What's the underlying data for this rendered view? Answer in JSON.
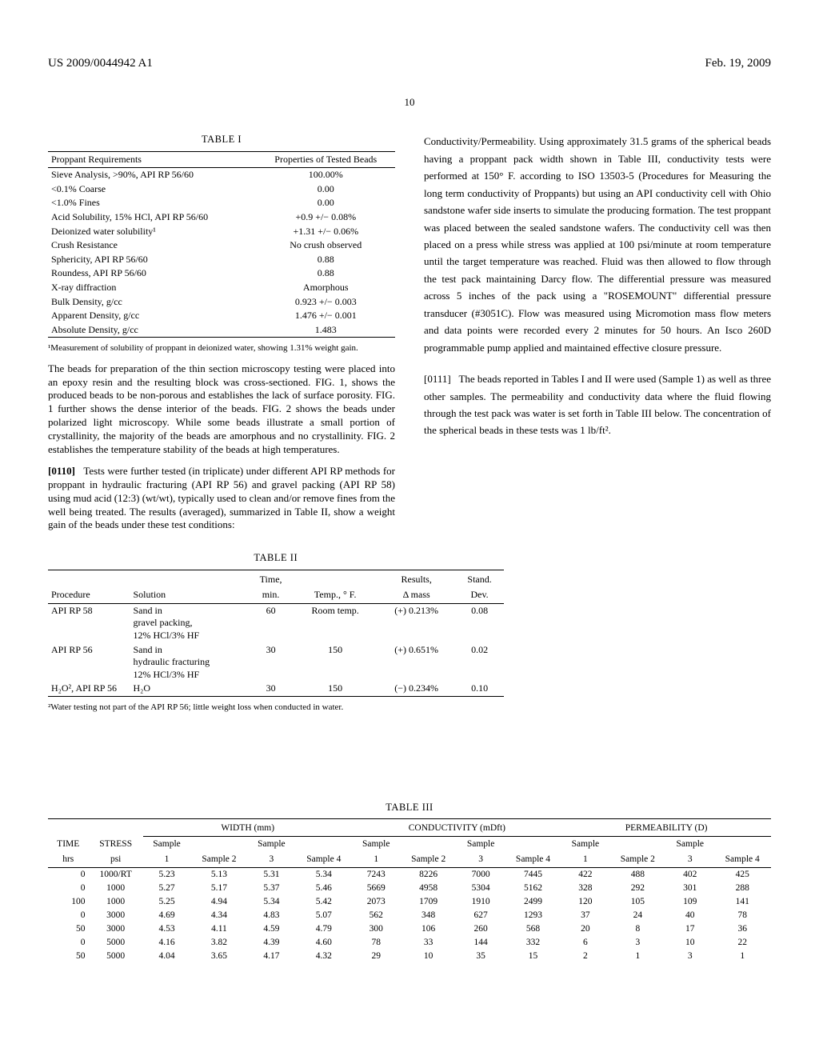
{
  "header": {
    "doc_id": "US 2009/0044942 A1",
    "date": "Feb. 19, 2009",
    "page_number": "10"
  },
  "table1": {
    "title": "TABLE I",
    "col1_header": "Proppant Requirements",
    "col2_header": "Properties of Tested Beads",
    "rows": [
      {
        "req": "Sieve Analysis, >90%, API RP 56/60",
        "val": "100.00%"
      },
      {
        "req": "<0.1% Coarse",
        "val": "0.00"
      },
      {
        "req": "<1.0% Fines",
        "val": "0.00"
      },
      {
        "req": "Acid Solubility, 15% HCl, API RP 56/60",
        "val": "+0.9 +/− 0.08%"
      },
      {
        "req": "Deionized water solubility¹",
        "val": "+1.31 +/− 0.06%"
      },
      {
        "req": "Crush Resistance",
        "val": "No crush observed"
      },
      {
        "req": "Sphericity, API RP 56/60",
        "val": "0.88"
      },
      {
        "req": "Roundess, API RP 56/60",
        "val": "0.88"
      },
      {
        "req": "X-ray diffraction",
        "val": "Amorphous"
      },
      {
        "req": "Bulk Density, g/cc",
        "val": "0.923 +/− 0.003"
      },
      {
        "req": "Apparent Density, g/cc",
        "val": "1.476 +/− 0.001"
      },
      {
        "req": "Absolute Density, g/cc",
        "val": "1.483"
      }
    ],
    "footnote": "¹Measurement of solubility of proppant in deionized water, showing 1.31% weight gain."
  },
  "left_paras": {
    "p1": "The beads for preparation of the thin section microscopy testing were placed into an epoxy resin and the resulting block was cross-sectioned. FIG. 1, shows the produced beads to be non-porous and establishes the lack of surface porosity. FIG. 1 further shows the dense interior of the beads. FIG. 2 shows the beads under polarized light microscopy. While some beads illustrate a small portion of crystallinity, the majority of the beads are amorphous and no crystallinity. FIG. 2 establishes the temperature stability of the beads at high temperatures.",
    "p2_label": "[0110]",
    "p2": "Tests were further tested (in triplicate) under different API RP methods for proppant in hydraulic fracturing (API RP 56) and gravel packing (API RP 58) using mud acid (12:3) (wt/wt), typically used to clean and/or remove fines from the well being treated. The results (averaged), summarized in Table II, show a weight gain of the beads under these test conditions:"
  },
  "right_paras": {
    "p1": "Conductivity/Permeability. Using approximately 31.5 grams of the spherical beads having a proppant pack width shown in Table III, conductivity tests were performed at 150° F. according to ISO 13503-5 (Procedures for Measuring the long term conductivity of Proppants) but using an API conductivity cell with Ohio sandstone wafer side inserts to simulate the producing formation. The test proppant was placed between the sealed sandstone wafers. The conductivity cell was then placed on a press while stress was applied at 100 psi/minute at room temperature until the target temperature was reached. Fluid was then allowed to flow through the test pack maintaining Darcy flow. The differential pressure was measured across 5 inches of the pack using a \"ROSEMOUNT\" differential pressure transducer (#3051C). Flow was measured using Micromotion mass flow meters and data points were recorded every 2 minutes for 50 hours. An Isco 260D programmable pump applied and maintained effective closure pressure.",
    "p2_label": "[0111]",
    "p2": "The beads reported in Tables I and II were used (Sample 1) as well as three other samples. The permeability and conductivity data where the fluid flowing through the test pack was water is set forth in Table III below. The concentration of the spherical beads in these tests was 1 lb/ft²."
  },
  "table2": {
    "title": "TABLE II",
    "headers": {
      "h1": "Procedure",
      "h2": "Solution",
      "h3a": "Time,",
      "h3b": "min.",
      "h4": "Temp., ° F.",
      "h5a": "Results,",
      "h5b": "Δ mass",
      "h6a": "Stand.",
      "h6b": "Dev."
    },
    "rows": [
      {
        "proc": "API RP 58",
        "sol": "Sand in\ngravel packing,\n12% HCl/3% HF",
        "time": "60",
        "temp": "Room temp.",
        "res": "(+) 0.213%",
        "sd": "0.08"
      },
      {
        "proc": "API RP 56",
        "sol": "Sand in\nhydraulic fracturing\n12% HCl/3% HF",
        "time": "30",
        "temp": "150",
        "res": "(+) 0.651%",
        "sd": "0.02"
      },
      {
        "proc": "H₂O², API RP 56",
        "sol": "H₂O",
        "time": "30",
        "temp": "150",
        "res": "(−) 0.234%",
        "sd": "0.10"
      }
    ],
    "footnote": "²Water testing not part of the API RP 56; little weight loss when conducted in water."
  },
  "table3": {
    "title": "TABLE III",
    "groups": {
      "g1": "WIDTH (mm)",
      "g2": "CONDUCTIVITY (mDft)",
      "g3": "PERMEABILITY (D)"
    },
    "sub_headers": {
      "time_a": "TIME",
      "time_b": "hrs",
      "stress_a": "STRESS",
      "stress_b": "psi",
      "s1a": "Sample",
      "s1b": "1",
      "s2": "Sample 2",
      "s3a": "Sample",
      "s3b": "3",
      "s4": "Sample 4"
    },
    "rows": [
      {
        "t": "0",
        "s": "1000/RT",
        "w": [
          "5.23",
          "5.13",
          "5.31",
          "5.34"
        ],
        "c": [
          "7243",
          "8226",
          "7000",
          "7445"
        ],
        "p": [
          "422",
          "488",
          "402",
          "425"
        ]
      },
      {
        "t": "0",
        "s": "1000",
        "w": [
          "5.27",
          "5.17",
          "5.37",
          "5.46"
        ],
        "c": [
          "5669",
          "4958",
          "5304",
          "5162"
        ],
        "p": [
          "328",
          "292",
          "301",
          "288"
        ]
      },
      {
        "t": "100",
        "s": "1000",
        "w": [
          "5.25",
          "4.94",
          "5.34",
          "5.42"
        ],
        "c": [
          "2073",
          "1709",
          "1910",
          "2499"
        ],
        "p": [
          "120",
          "105",
          "109",
          "141"
        ]
      },
      {
        "t": "0",
        "s": "3000",
        "w": [
          "4.69",
          "4.34",
          "4.83",
          "5.07"
        ],
        "c": [
          "562",
          "348",
          "627",
          "1293"
        ],
        "p": [
          "37",
          "24",
          "40",
          "78"
        ]
      },
      {
        "t": "50",
        "s": "3000",
        "w": [
          "4.53",
          "4.11",
          "4.59",
          "4.79"
        ],
        "c": [
          "300",
          "106",
          "260",
          "568"
        ],
        "p": [
          "20",
          "8",
          "17",
          "36"
        ]
      },
      {
        "t": "0",
        "s": "5000",
        "w": [
          "4.16",
          "3.82",
          "4.39",
          "4.60"
        ],
        "c": [
          "78",
          "33",
          "144",
          "332"
        ],
        "p": [
          "6",
          "3",
          "10",
          "22"
        ]
      },
      {
        "t": "50",
        "s": "5000",
        "w": [
          "4.04",
          "3.65",
          "4.17",
          "4.32"
        ],
        "c": [
          "29",
          "10",
          "35",
          "15"
        ],
        "p": [
          "2",
          "1",
          "3",
          "1"
        ]
      }
    ]
  }
}
